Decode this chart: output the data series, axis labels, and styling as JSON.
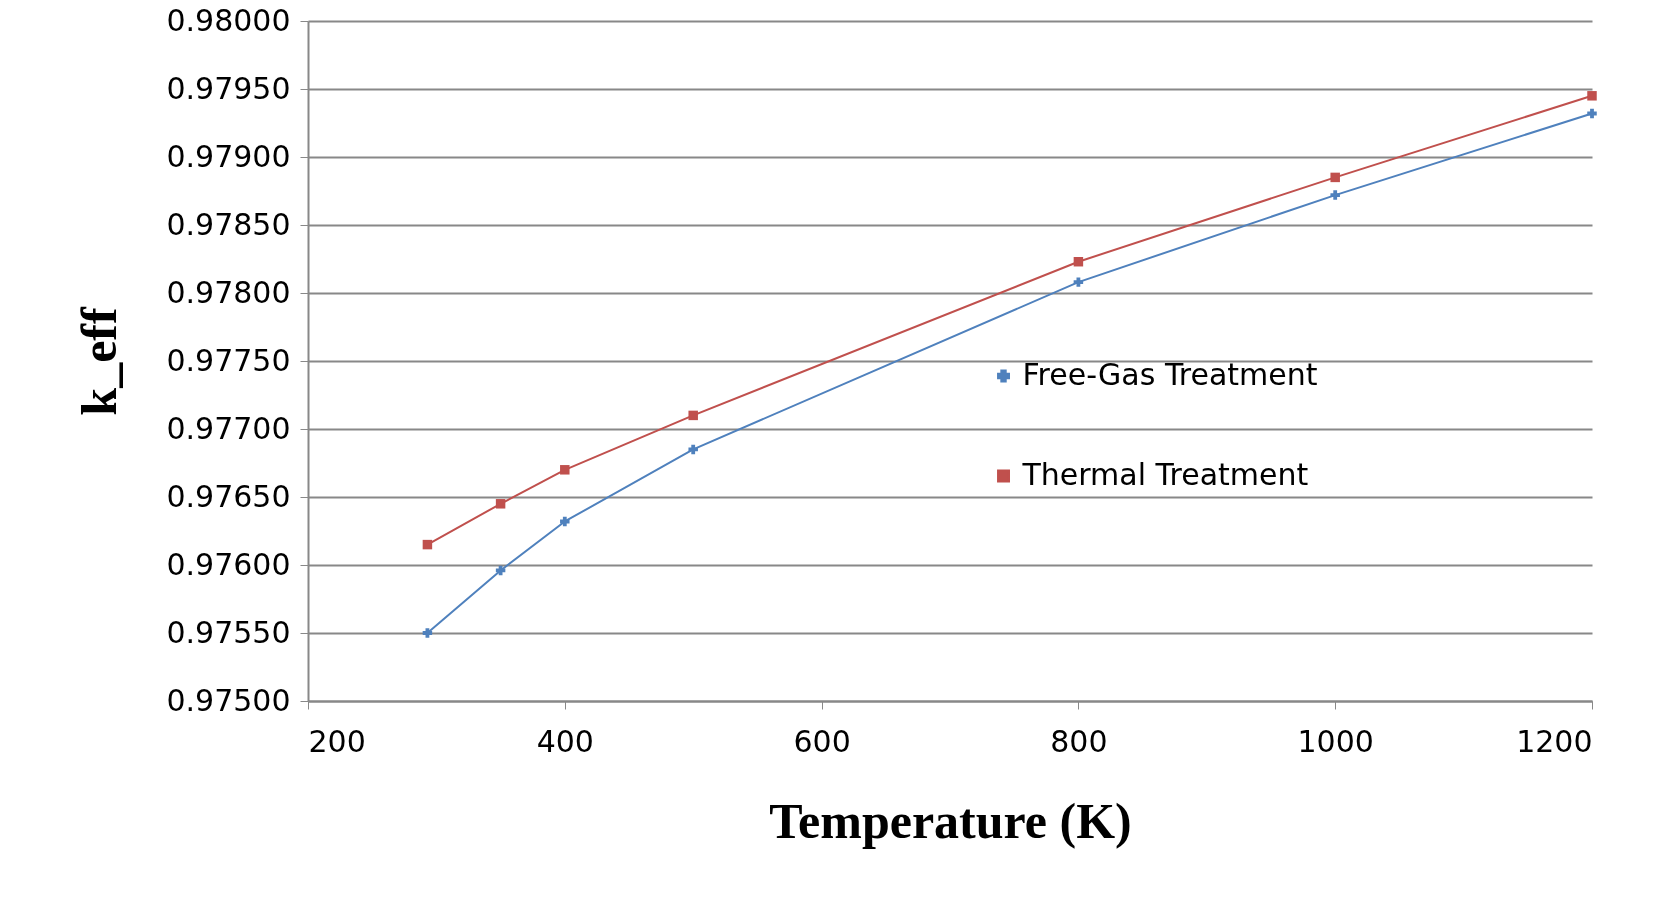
{
  "chart_data": {
    "type": "line",
    "xlabel": "Temperature (K)",
    "ylabel": "k_eff",
    "x": [
      293,
      350,
      400,
      500,
      800,
      1000,
      1200
    ],
    "series": [
      {
        "name": "Free-Gas Treatment",
        "color": "#4f81bd",
        "marker": "cross",
        "values": [
          0.9755,
          0.97596,
          0.97632,
          0.97685,
          0.97808,
          0.97872,
          0.97932
        ]
      },
      {
        "name": "Thermal Treatment",
        "color": "#c0504d",
        "marker": "square",
        "values": [
          0.97615,
          0.97645,
          0.9767,
          0.9771,
          0.97823,
          0.97885,
          0.97945
        ]
      }
    ],
    "xlim": [
      200,
      1200
    ],
    "xticks": [
      200,
      400,
      600,
      800,
      1000,
      1200
    ],
    "ylim": [
      0.975,
      0.98
    ],
    "yticks": [
      {
        "value": 0.975,
        "label": "0.97500"
      },
      {
        "value": 0.9755,
        "label": "0.97550"
      },
      {
        "value": 0.976,
        "label": "0.97600"
      },
      {
        "value": 0.9765,
        "label": "0.97650"
      },
      {
        "value": 0.977,
        "label": "0.97700"
      },
      {
        "value": 0.9775,
        "label": "0.97750"
      },
      {
        "value": 0.978,
        "label": "0.97800"
      },
      {
        "value": 0.9785,
        "label": "0.97850"
      },
      {
        "value": 0.979,
        "label": "0.97900"
      },
      {
        "value": 0.9795,
        "label": "0.97950"
      },
      {
        "value": 0.98,
        "label": "0.98000"
      }
    ],
    "grid": "y",
    "legend": "right",
    "line_style": "solid"
  }
}
